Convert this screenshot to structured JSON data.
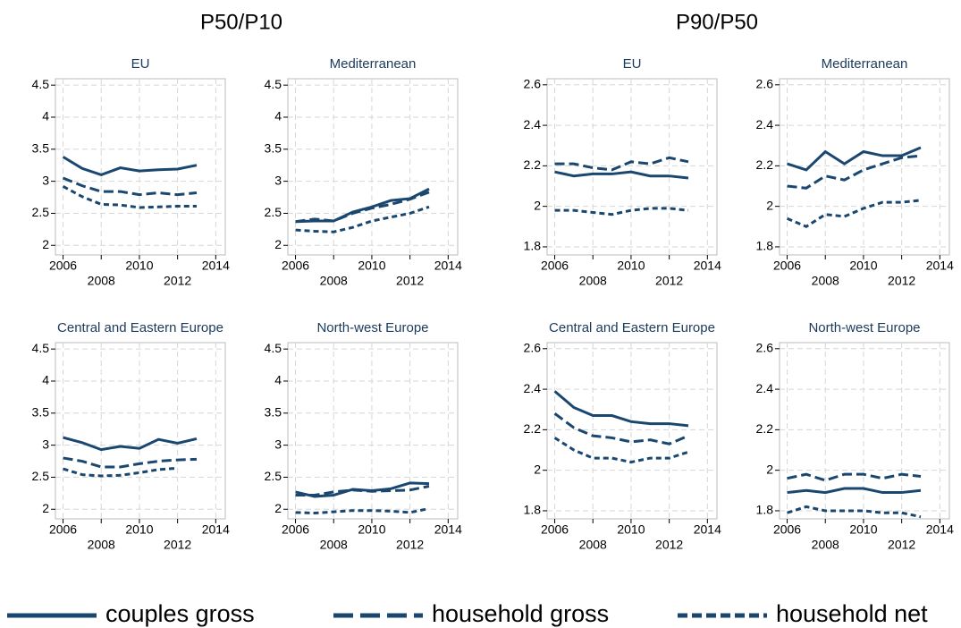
{
  "column_titles": [
    "P50/P10",
    "P90/P50"
  ],
  "legend": [
    {
      "name": "couples gross",
      "line_style": "solid"
    },
    {
      "name": "household gross",
      "line_style": "long-dash"
    },
    {
      "name": "household net",
      "line_style": "short-dash"
    }
  ],
  "chart_data": [
    {
      "type": "line",
      "title": "EU",
      "x": [
        2006,
        2007,
        2008,
        2009,
        2010,
        2011,
        2012,
        2013
      ],
      "series": [
        {
          "line_style": "solid",
          "color": "#1a476f",
          "values": [
            3.38,
            3.2,
            3.1,
            3.21,
            3.16,
            3.18,
            3.19,
            3.25
          ]
        },
        {
          "line_style": "long-dash",
          "color": "#1a476f",
          "values": [
            3.05,
            2.93,
            2.84,
            2.84,
            2.79,
            2.82,
            2.79,
            2.82
          ]
        },
        {
          "line_style": "short-dash",
          "color": "#1a476f",
          "values": [
            2.92,
            2.76,
            2.64,
            2.63,
            2.59,
            2.6,
            2.61,
            2.61
          ]
        }
      ],
      "xlim": [
        2005.6,
        2014.5
      ],
      "xticks": [
        2006,
        2008,
        2010,
        2012,
        2014
      ],
      "ylim": [
        1.85,
        4.6
      ],
      "yticks": [
        2,
        2.5,
        3,
        3.5,
        4,
        4.5
      ],
      "grid": true
    },
    {
      "type": "line",
      "title": "Mediterranean",
      "x": [
        2006,
        2007,
        2008,
        2009,
        2010,
        2011,
        2012,
        2013
      ],
      "series": [
        {
          "line_style": "solid",
          "color": "#1a476f",
          "values": [
            2.37,
            2.38,
            2.38,
            2.52,
            2.6,
            2.7,
            2.73,
            2.88
          ]
        },
        {
          "line_style": "long-dash",
          "color": "#1a476f",
          "values": [
            2.37,
            2.41,
            2.38,
            2.5,
            2.58,
            2.64,
            2.72,
            2.83
          ]
        },
        {
          "line_style": "short-dash",
          "color": "#1a476f",
          "values": [
            2.24,
            2.22,
            2.21,
            2.28,
            2.38,
            2.44,
            2.5,
            2.6
          ]
        }
      ],
      "xlim": [
        2005.6,
        2014.5
      ],
      "xticks": [
        2006,
        2008,
        2010,
        2012,
        2014
      ],
      "ylim": [
        1.85,
        4.6
      ],
      "yticks": [
        2,
        2.5,
        3,
        3.5,
        4,
        4.5
      ],
      "grid": true
    },
    {
      "type": "line",
      "title": "EU",
      "x": [
        2006,
        2007,
        2008,
        2009,
        2010,
        2011,
        2012,
        2013
      ],
      "series": [
        {
          "line_style": "solid",
          "color": "#1a476f",
          "values": [
            2.17,
            2.15,
            2.16,
            2.16,
            2.17,
            2.15,
            2.15,
            2.14
          ]
        },
        {
          "line_style": "long-dash",
          "color": "#1a476f",
          "values": [
            2.21,
            2.21,
            2.19,
            2.18,
            2.22,
            2.21,
            2.24,
            2.22
          ]
        },
        {
          "line_style": "short-dash",
          "color": "#1a476f",
          "values": [
            1.98,
            1.98,
            1.97,
            1.96,
            1.98,
            1.99,
            1.99,
            1.98
          ]
        }
      ],
      "xlim": [
        2005.6,
        2014.5
      ],
      "xticks": [
        2006,
        2008,
        2010,
        2012,
        2014
      ],
      "ylim": [
        1.76,
        2.63
      ],
      "yticks": [
        1.8,
        2,
        2.2,
        2.4,
        2.6
      ],
      "grid": true
    },
    {
      "type": "line",
      "title": "Mediterranean",
      "x": [
        2006,
        2007,
        2008,
        2009,
        2010,
        2011,
        2012,
        2013
      ],
      "series": [
        {
          "line_style": "solid",
          "color": "#1a476f",
          "values": [
            2.21,
            2.18,
            2.27,
            2.21,
            2.27,
            2.25,
            2.25,
            2.29
          ]
        },
        {
          "line_style": "long-dash",
          "color": "#1a476f",
          "values": [
            2.1,
            2.09,
            2.15,
            2.13,
            2.18,
            2.21,
            2.24,
            2.25
          ]
        },
        {
          "line_style": "short-dash",
          "color": "#1a476f",
          "values": [
            1.94,
            1.9,
            1.96,
            1.95,
            1.99,
            2.02,
            2.02,
            2.03
          ]
        }
      ],
      "xlim": [
        2005.6,
        2014.5
      ],
      "xticks": [
        2006,
        2008,
        2010,
        2012,
        2014
      ],
      "ylim": [
        1.76,
        2.63
      ],
      "yticks": [
        1.8,
        2,
        2.2,
        2.4,
        2.6
      ],
      "grid": true
    },
    {
      "type": "line",
      "title": "Central and Eastern Europe",
      "x": [
        2006,
        2007,
        2008,
        2009,
        2010,
        2011,
        2012,
        2013
      ],
      "series": [
        {
          "line_style": "solid",
          "color": "#1a476f",
          "values": [
            3.12,
            3.04,
            2.93,
            2.98,
            2.95,
            3.09,
            3.03,
            3.1
          ]
        },
        {
          "line_style": "long-dash",
          "color": "#1a476f",
          "values": [
            2.8,
            2.75,
            2.66,
            2.66,
            2.71,
            2.75,
            2.77,
            2.78
          ]
        },
        {
          "line_style": "short-dash",
          "color": "#1a476f",
          "values": [
            2.63,
            2.54,
            2.52,
            2.53,
            2.57,
            2.62,
            2.64,
            null
          ]
        }
      ],
      "xlim": [
        2005.6,
        2014.5
      ],
      "xticks": [
        2006,
        2008,
        2010,
        2012,
        2014
      ],
      "ylim": [
        1.85,
        4.6
      ],
      "yticks": [
        2,
        2.5,
        3,
        3.5,
        4,
        4.5
      ],
      "grid": true
    },
    {
      "type": "line",
      "title": "North-west Europe",
      "x": [
        2006,
        2007,
        2008,
        2009,
        2010,
        2011,
        2012,
        2013
      ],
      "series": [
        {
          "line_style": "solid",
          "color": "#1a476f",
          "values": [
            2.27,
            2.2,
            2.22,
            2.31,
            2.29,
            2.32,
            2.41,
            2.4
          ]
        },
        {
          "line_style": "long-dash",
          "color": "#1a476f",
          "values": [
            2.22,
            2.22,
            2.27,
            2.3,
            2.28,
            2.29,
            2.3,
            2.36
          ]
        },
        {
          "line_style": "short-dash",
          "color": "#1a476f",
          "values": [
            1.95,
            1.94,
            1.96,
            1.98,
            1.98,
            1.97,
            1.95,
            2.01
          ]
        }
      ],
      "xlim": [
        2005.6,
        2014.5
      ],
      "xticks": [
        2006,
        2008,
        2010,
        2012,
        2014
      ],
      "ylim": [
        1.85,
        4.6
      ],
      "yticks": [
        2,
        2.5,
        3,
        3.5,
        4,
        4.5
      ],
      "grid": true
    },
    {
      "type": "line",
      "title": "Central and Eastern Europe",
      "x": [
        2006,
        2007,
        2008,
        2009,
        2010,
        2011,
        2012,
        2013
      ],
      "series": [
        {
          "line_style": "solid",
          "color": "#1a476f",
          "values": [
            2.39,
            2.31,
            2.27,
            2.27,
            2.24,
            2.23,
            2.23,
            2.22
          ]
        },
        {
          "line_style": "long-dash",
          "color": "#1a476f",
          "values": [
            2.28,
            2.21,
            2.17,
            2.16,
            2.14,
            2.15,
            2.13,
            2.17
          ]
        },
        {
          "line_style": "short-dash",
          "color": "#1a476f",
          "values": [
            2.16,
            2.1,
            2.06,
            2.06,
            2.04,
            2.06,
            2.06,
            2.09
          ]
        }
      ],
      "xlim": [
        2005.6,
        2014.5
      ],
      "xticks": [
        2006,
        2008,
        2010,
        2012,
        2014
      ],
      "ylim": [
        1.76,
        2.63
      ],
      "yticks": [
        1.8,
        2,
        2.2,
        2.4,
        2.6
      ],
      "grid": true
    },
    {
      "type": "line",
      "title": "North-west Europe",
      "x": [
        2006,
        2007,
        2008,
        2009,
        2010,
        2011,
        2012,
        2013
      ],
      "series": [
        {
          "line_style": "solid",
          "color": "#1a476f",
          "values": [
            1.89,
            1.9,
            1.89,
            1.91,
            1.91,
            1.89,
            1.89,
            1.9
          ]
        },
        {
          "line_style": "long-dash",
          "color": "#1a476f",
          "values": [
            1.96,
            1.98,
            1.95,
            1.98,
            1.98,
            1.96,
            1.98,
            1.97
          ]
        },
        {
          "line_style": "short-dash",
          "color": "#1a476f",
          "values": [
            1.79,
            1.82,
            1.8,
            1.8,
            1.8,
            1.79,
            1.79,
            1.77
          ]
        }
      ],
      "xlim": [
        2005.6,
        2014.5
      ],
      "xticks": [
        2006,
        2008,
        2010,
        2012,
        2014
      ],
      "ylim": [
        1.76,
        2.63
      ],
      "yticks": [
        1.8,
        2,
        2.2,
        2.4,
        2.6
      ],
      "grid": true
    }
  ]
}
